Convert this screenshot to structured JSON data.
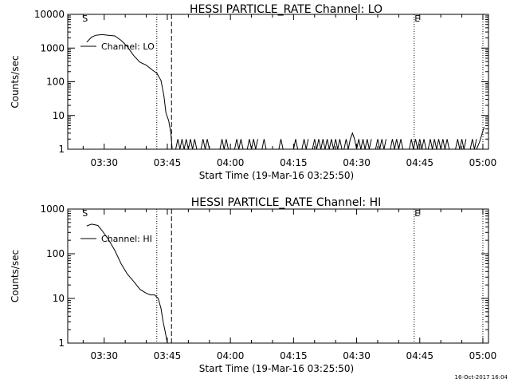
{
  "footer": {
    "timestamp": "16-Oct-2017 16:04"
  },
  "chart_data": [
    {
      "type": "line",
      "title": "HESSI PARTICLE_RATE Channel: LO",
      "xlabel": "Start Time (19-Mar-16 03:25:50)",
      "ylabel": "Counts/sec",
      "yscale": "log",
      "ylim": [
        1,
        10000
      ],
      "xlim_minutes_after_start": [
        -4.5,
        95.5
      ],
      "x_ticks": [
        "03:30",
        "03:45",
        "04:00",
        "04:15",
        "04:30",
        "04:45",
        "05:00"
      ],
      "y_ticks": [
        "1",
        "10",
        "100",
        "1000",
        "10000"
      ],
      "legend": "Channel: LO",
      "markers": {
        "start": "S",
        "end": "E"
      },
      "vlines": [
        {
          "style": "dotted",
          "time": "03:42:30"
        },
        {
          "style": "dashed",
          "time": "03:46:00"
        },
        {
          "style": "dotted",
          "time": "04:43:40"
        },
        {
          "style": "dotted",
          "time": "05:00:00"
        }
      ],
      "series": [
        {
          "name": "Channel: LO",
          "x": [
            "03:25:50",
            "03:27:00",
            "03:28:00",
            "03:29:30",
            "03:31:00",
            "03:32:30",
            "03:34:00",
            "03:35:30",
            "03:37:00",
            "03:38:30",
            "03:40:00",
            "03:41:30",
            "03:42:30",
            "03:43:30",
            "03:44:10",
            "03:44:40",
            "03:45:20",
            "03:45:50",
            "03:46:10"
          ],
          "y": [
            1500,
            2100,
            2400,
            2500,
            2400,
            2300,
            1700,
            1100,
            600,
            380,
            310,
            220,
            180,
            110,
            40,
            12,
            7,
            3,
            1
          ]
        }
      ],
      "noise_intervals": [
        [
          "03:47:00",
          "03:52:00"
        ],
        [
          "03:53:00",
          "03:55:00"
        ],
        [
          "03:57:30",
          "03:59:30"
        ],
        [
          "04:01:00",
          "04:03:00"
        ],
        [
          "04:04:00",
          "04:06:30"
        ],
        [
          "04:07:30",
          "04:08:30"
        ],
        [
          "04:11:30",
          "04:12:30"
        ],
        [
          "04:15:00",
          "04:16:00"
        ],
        [
          "04:17:00",
          "04:18:30"
        ],
        [
          "04:19:30",
          "04:26:30"
        ],
        [
          "04:27:00",
          "04:33:30"
        ],
        [
          "04:34:30",
          "04:37:00"
        ],
        [
          "04:38:00",
          "04:41:00"
        ],
        [
          "04:42:30",
          "04:46:30"
        ],
        [
          "04:47:00",
          "04:52:00"
        ],
        [
          "04:53:30",
          "04:56:00"
        ],
        [
          "04:57:00",
          "04:58:30"
        ]
      ],
      "noise_peaks": [
        {
          "time": "04:29:00",
          "value": 3
        },
        {
          "time": "04:22:00",
          "value": 2
        },
        {
          "time": "04:37:00",
          "value": 2
        }
      ],
      "end_rise": {
        "x": [
          "04:58:30",
          "04:59:10",
          "04:59:40",
          "05:00:00",
          "05:00:20"
        ],
        "y": [
          1,
          1.6,
          2.5,
          3.5,
          4.5
        ]
      }
    },
    {
      "type": "line",
      "title": "HESSI PARTICLE_RATE Channel: HI",
      "xlabel": "Start Time (19-Mar-16 03:25:50)",
      "ylabel": "Counts/sec",
      "yscale": "log",
      "ylim": [
        1,
        1000
      ],
      "xlim_minutes_after_start": [
        -4.5,
        95.5
      ],
      "x_ticks": [
        "03:30",
        "03:45",
        "04:00",
        "04:15",
        "04:30",
        "04:45",
        "05:00"
      ],
      "y_ticks": [
        "1",
        "10",
        "100",
        "1000"
      ],
      "legend": "Channel: HI",
      "markers": {
        "start": "S",
        "end": "E"
      },
      "vlines": [
        {
          "style": "dotted",
          "time": "03:42:30"
        },
        {
          "style": "dashed",
          "time": "03:46:00"
        },
        {
          "style": "dotted",
          "time": "04:43:40"
        },
        {
          "style": "dotted",
          "time": "05:00:00"
        }
      ],
      "series": [
        {
          "name": "Channel: HI",
          "x": [
            "03:25:50",
            "03:27:00",
            "03:28:30",
            "03:29:30",
            "03:31:00",
            "03:32:30",
            "03:34:00",
            "03:35:30",
            "03:37:00",
            "03:38:30",
            "03:40:00",
            "03:41:00",
            "03:42:00",
            "03:42:50",
            "03:43:30",
            "03:44:00",
            "03:44:30",
            "03:45:00"
          ],
          "y": [
            420,
            460,
            430,
            330,
            210,
            120,
            60,
            35,
            24,
            16,
            13,
            12,
            12,
            10,
            6,
            3,
            1.8,
            1
          ]
        }
      ]
    }
  ]
}
